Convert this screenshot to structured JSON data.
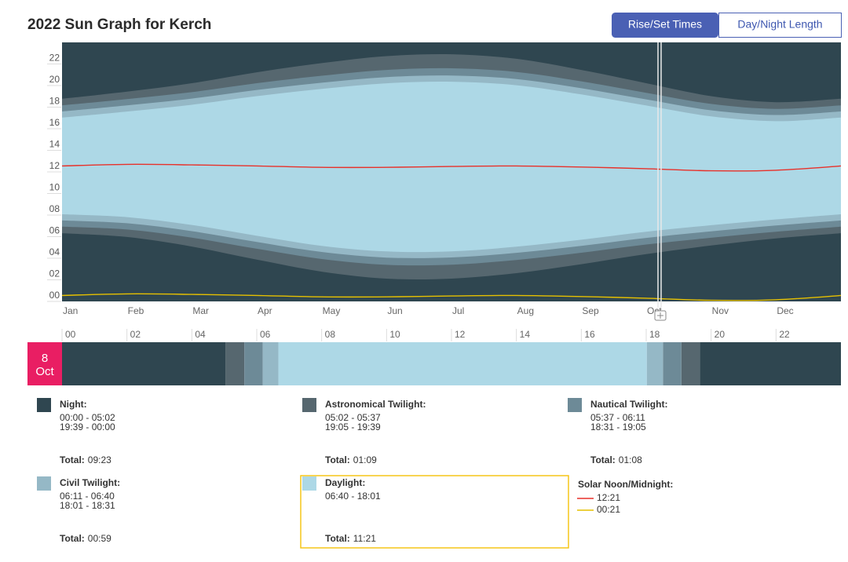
{
  "header": {
    "title": "2022 Sun Graph for Kerch",
    "buttons": [
      {
        "label": "Rise/Set Times",
        "active": true
      },
      {
        "label": "Day/Night Length",
        "active": false
      }
    ]
  },
  "chart_data": {
    "type": "band",
    "categories": [
      "Jan",
      "Feb",
      "Mar",
      "Apr",
      "May",
      "Jun",
      "Jul",
      "Aug",
      "Sep",
      "Oct",
      "Nov",
      "Dec",
      null
    ],
    "background": "#2f4650",
    "series": [
      {
        "color": "#56676f",
        "values": [
          6.32,
          5.97,
          5.08,
          3.87,
          2.76,
          2.11,
          2.11,
          2.62,
          3.45,
          4.38,
          5.18,
          5.84,
          6.32
        ],
        "values_end": [
          18.78,
          19.43,
          20.22,
          21.23,
          22.08,
          22.73,
          22.9,
          22.48,
          21.45,
          20.22,
          19.02,
          18.46,
          18.78
        ]
      },
      {
        "color": "#6d8a97",
        "values": [
          6.93,
          6.66,
          5.91,
          4.88,
          3.93,
          3.39,
          3.4,
          3.84,
          4.51,
          5.27,
          5.9,
          6.46,
          6.93
        ],
        "values_end": [
          18.17,
          18.74,
          19.39,
          20.22,
          20.91,
          21.45,
          21.6,
          21.26,
          20.39,
          19.33,
          18.3,
          17.84,
          18.17
        ]
      },
      {
        "color": "#95b8c6",
        "values": [
          7.5,
          7.24,
          6.51,
          5.51,
          4.58,
          4.06,
          4.07,
          4.5,
          5.15,
          5.88,
          6.49,
          7.03,
          7.5
        ],
        "values_end": [
          17.6,
          18.16,
          18.79,
          19.59,
          20.26,
          20.78,
          20.93,
          20.6,
          19.75,
          18.72,
          17.71,
          17.27,
          17.6
        ]
      },
      {
        "color": "#add8e6",
        "values": [
          8.07,
          7.81,
          7.08,
          6.08,
          5.15,
          4.63,
          4.64,
          5.07,
          5.72,
          6.45,
          7.06,
          7.6,
          8.07
        ],
        "values_end": [
          17.03,
          17.59,
          18.22,
          19.02,
          19.69,
          20.21,
          20.36,
          20.03,
          19.18,
          18.15,
          17.14,
          16.7,
          17.03
        ]
      }
    ],
    "lines": [
      {
        "color": "#e8312a",
        "values": [
          12.55,
          12.7,
          12.65,
          12.55,
          12.42,
          12.42,
          12.5,
          12.55,
          12.45,
          12.3,
          12.1,
          12.15,
          12.55
        ]
      },
      {
        "color": "#e6c000",
        "values": [
          0.55,
          0.7,
          0.65,
          0.55,
          0.42,
          0.42,
          0.5,
          0.55,
          0.45,
          0.3,
          0.1,
          0.15,
          0.55
        ]
      }
    ],
    "ylim": [
      0,
      24
    ],
    "yticks": [
      {
        "value": 0,
        "label": "00"
      },
      {
        "value": 2,
        "label": "02"
      },
      {
        "value": 4,
        "label": "04"
      },
      {
        "value": 6,
        "label": "06"
      },
      {
        "value": 8,
        "label": "08"
      },
      10,
      12,
      14,
      16,
      18,
      20,
      22
    ]
  },
  "day_strip": {
    "day": "8",
    "month": "Oct",
    "xlim": [
      0,
      24
    ],
    "xticks": [
      {
        "value": 0,
        "label": "00"
      },
      {
        "value": 2,
        "label": "02"
      },
      {
        "value": 4,
        "label": "04"
      },
      {
        "value": 6,
        "label": "06"
      },
      {
        "value": 8,
        "label": "08"
      },
      10,
      12,
      14,
      16,
      18,
      20,
      22
    ]
  },
  "legend": [
    {
      "title": "Night:",
      "color": "#2f4650",
      "ranges": [
        "00:00 - 05:02",
        "19:39 - 00:00"
      ],
      "total_label": "Total:",
      "total": "09:23"
    },
    {
      "title": "Astronomical Twilight:",
      "color": "#56676f",
      "ranges": [
        "05:02 - 05:37",
        "19:05 - 19:39"
      ],
      "total_label": "Total:",
      "total": "01:09"
    },
    {
      "title": "Nautical Twilight:",
      "color": "#6d8a97",
      "ranges": [
        "05:37 - 06:11",
        "18:31 - 19:05"
      ],
      "total_label": "Total:",
      "total": "01:08"
    },
    {
      "title": "Civil Twilight:",
      "color": "#95b8c6",
      "ranges": [
        "06:11 - 06:40",
        "18:01 - 18:31"
      ],
      "total_label": "Total:",
      "total": "00:59"
    },
    {
      "title": "Daylight:",
      "color": "#add8e6",
      "ranges": [
        "06:40 - 18:01"
      ],
      "total_label": "Total:",
      "total": "11:21",
      "selected": true
    }
  ],
  "solar": {
    "title": "Solar Noon/Midnight:",
    "items": [
      {
        "color": "#e8312a",
        "label": "12:21"
      },
      {
        "color": "#e6c000",
        "label": "00:21"
      }
    ]
  }
}
